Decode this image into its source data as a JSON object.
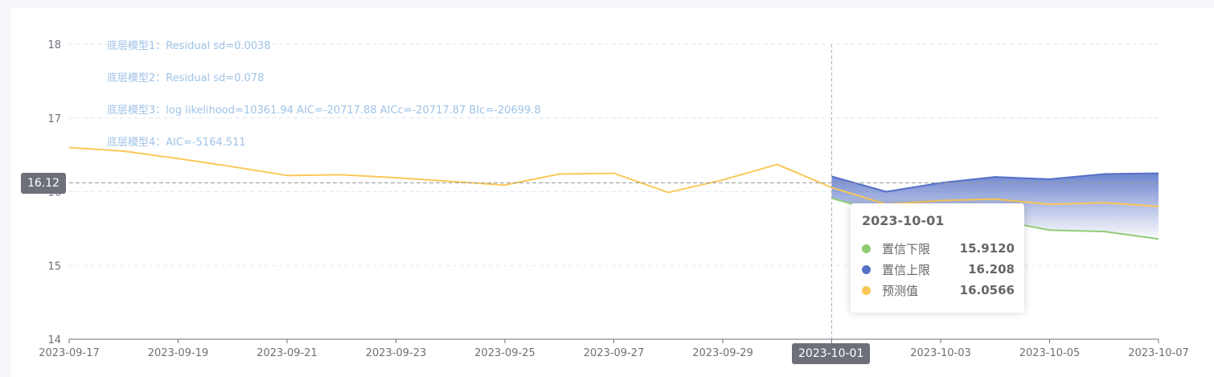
{
  "chart_data": {
    "type": "line",
    "x": [
      "2023-09-17",
      "2023-09-18",
      "2023-09-19",
      "2023-09-20",
      "2023-09-21",
      "2023-09-22",
      "2023-09-23",
      "2023-09-24",
      "2023-09-25",
      "2023-09-26",
      "2023-09-27",
      "2023-09-28",
      "2023-09-29",
      "2023-09-30",
      "2023-10-01",
      "2023-10-02",
      "2023-10-03",
      "2023-10-04",
      "2023-10-05",
      "2023-10-06",
      "2023-10-07"
    ],
    "x_tick_labels": [
      "2023-09-17",
      "2023-09-19",
      "2023-09-21",
      "2023-09-23",
      "2023-09-25",
      "2023-09-27",
      "2023-09-29",
      "2023-10-01",
      "2023-10-03",
      "2023-10-05",
      "2023-10-07"
    ],
    "y_tick_labels": [
      "14",
      "15",
      "16",
      "17",
      "18"
    ],
    "ylim": [
      14,
      18
    ],
    "grid": true,
    "series": [
      {
        "name": "预测值",
        "color": "#fac858",
        "values": [
          16.6,
          16.55,
          16.45,
          16.34,
          16.22,
          16.23,
          16.19,
          16.14,
          16.09,
          16.24,
          16.25,
          15.99,
          16.16,
          16.37,
          16.0566,
          15.83,
          15.88,
          15.9,
          15.83,
          15.85,
          15.8
        ]
      },
      {
        "name": "置信上限",
        "color": "#5470c6",
        "values": [
          null,
          null,
          null,
          null,
          null,
          null,
          null,
          null,
          null,
          null,
          null,
          null,
          null,
          null,
          16.208,
          16.0,
          16.12,
          16.2,
          16.17,
          16.24,
          16.25
        ]
      },
      {
        "name": "置信下限",
        "color": "#91cc75",
        "values": [
          null,
          null,
          null,
          null,
          null,
          null,
          null,
          null,
          null,
          null,
          null,
          null,
          null,
          null,
          15.912,
          15.7,
          15.65,
          15.62,
          15.48,
          15.46,
          15.36
        ]
      }
    ],
    "annotations": [
      "底层模型1：Residual sd=0.0038",
      "底层模型2：Residual sd=0.078",
      "底层模型3：log likelihood=10361.94 AIC=-20717.88 AICc=-20717.87 BIc=-20699.8",
      "底层模型4：AIC=-5164.511"
    ],
    "axis_pointer": {
      "x_label": "2023-10-01",
      "y_label": "16.12",
      "y_value": 16.12
    },
    "tooltip": {
      "title": "2023-10-01",
      "rows": [
        {
          "name": "置信下限",
          "value": "15.9120",
          "color": "#91cc75"
        },
        {
          "name": "置信上限",
          "value": "16.208",
          "color": "#5470c6"
        },
        {
          "name": "预测值",
          "value": "16.0566",
          "color": "#fac858"
        }
      ]
    }
  }
}
